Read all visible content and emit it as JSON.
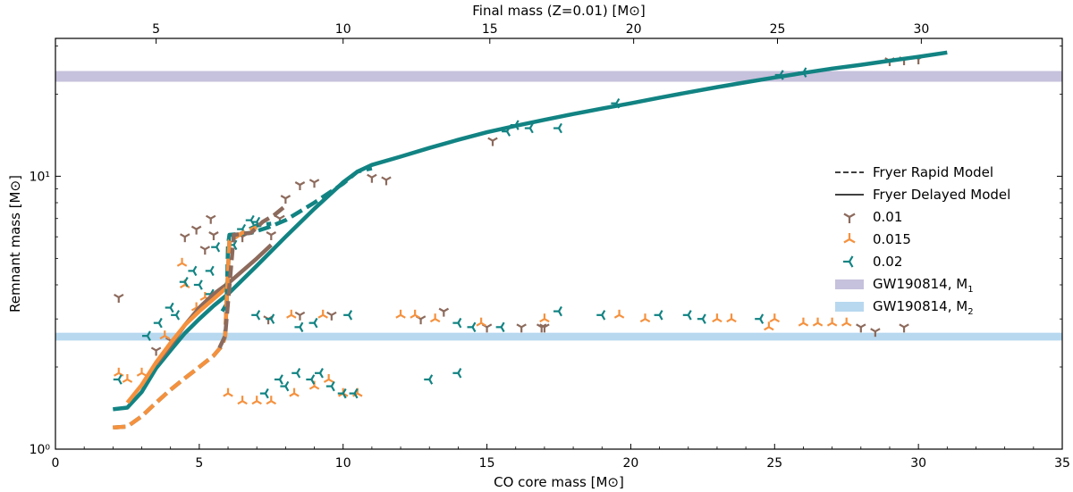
{
  "chart_data": {
    "type": "scatter",
    "xlabel": "CO core mass [M⊙]",
    "ylabel": "Remnant mass [M⊙]",
    "top_xlabel": "Final mass (Z=0.01) [M⊙]",
    "xlim": [
      0,
      35
    ],
    "ylim": [
      1,
      32
    ],
    "yscale": "log",
    "x_ticks": [
      0,
      5,
      10,
      15,
      20,
      25,
      30,
      35
    ],
    "x_tick_labels": [
      "0",
      "5",
      "10",
      "15",
      "20",
      "25",
      "30",
      "35"
    ],
    "y_ticks": [
      1,
      10
    ],
    "y_tick_labels": [
      "10⁰",
      "10¹"
    ],
    "top_x_ticks": [
      {
        "label": "5",
        "at": 3.5
      },
      {
        "label": "10",
        "at": 10.0
      },
      {
        "label": "15",
        "at": 15.1
      },
      {
        "label": "20",
        "at": 20.1
      },
      {
        "label": "25",
        "at": 25.1
      },
      {
        "label": "30",
        "at": 30.1
      }
    ],
    "bands": [
      {
        "name": "GW190814, M₁",
        "label_main": "GW190814, M",
        "label_sub": "1",
        "y": [
          22.2,
          24.3
        ],
        "color": "#c6c1dc"
      },
      {
        "name": "GW190814, M₂",
        "label_main": "GW190814, M",
        "label_sub": "2",
        "y": [
          2.5,
          2.67
        ],
        "color": "#b7d8ef"
      }
    ],
    "legend": {
      "position": "right",
      "entries": [
        {
          "label": "Fryer Rapid Model",
          "style": "dashed"
        },
        {
          "label": "Fryer Delayed Model",
          "style": "solid"
        },
        {
          "label": "0.01",
          "marker": "tri_down",
          "color": "#8c6a5c"
        },
        {
          "label": "0.015",
          "marker": "tri_up",
          "color": "#f5913e"
        },
        {
          "label": "0.02",
          "marker": "tri_left",
          "color": "#128383"
        }
      ]
    },
    "curves": [
      {
        "name": "delayed-z0.02",
        "style": "solid",
        "color": "#128383",
        "points": [
          [
            2.0,
            1.4
          ],
          [
            2.5,
            1.42
          ],
          [
            3.0,
            1.62
          ],
          [
            3.5,
            1.98
          ],
          [
            4.0,
            2.3
          ],
          [
            4.5,
            2.66
          ],
          [
            5.0,
            3.0
          ],
          [
            5.5,
            3.35
          ],
          [
            6.0,
            3.7
          ],
          [
            7.0,
            4.7
          ],
          [
            8.0,
            6.0
          ],
          [
            9.0,
            7.6
          ],
          [
            10.0,
            9.5
          ],
          [
            10.5,
            10.4
          ],
          [
            11.0,
            11.0
          ],
          [
            12.0,
            11.8
          ],
          [
            13.0,
            12.7
          ],
          [
            14.0,
            13.6
          ],
          [
            15.0,
            14.5
          ],
          [
            16.0,
            15.3
          ],
          [
            17.0,
            16.1
          ],
          [
            18.0,
            16.9
          ],
          [
            19.0,
            17.7
          ],
          [
            20.0,
            18.5
          ],
          [
            21.0,
            19.4
          ],
          [
            22.0,
            20.3
          ],
          [
            23.0,
            21.2
          ],
          [
            24.0,
            22.1
          ],
          [
            25.0,
            23.0
          ],
          [
            26.0,
            23.9
          ],
          [
            27.0,
            24.8
          ],
          [
            28.0,
            25.6
          ],
          [
            29.0,
            26.5
          ],
          [
            30.0,
            27.4
          ],
          [
            31.0,
            28.4
          ]
        ]
      },
      {
        "name": "delayed-z0.01",
        "style": "solid",
        "color": "#8c6a5c",
        "points": [
          [
            3.5,
            2.05
          ],
          [
            4.0,
            2.4
          ],
          [
            4.5,
            2.85
          ],
          [
            5.0,
            3.3
          ],
          [
            5.5,
            3.7
          ],
          [
            6.0,
            4.05
          ],
          [
            6.5,
            4.5
          ],
          [
            7.0,
            5.0
          ],
          [
            7.5,
            5.6
          ]
        ]
      },
      {
        "name": "delayed-z0.015",
        "style": "solid",
        "color": "#f5913e",
        "points": [
          [
            2.5,
            1.48
          ],
          [
            3.0,
            1.72
          ],
          [
            3.5,
            2.08
          ],
          [
            4.0,
            2.45
          ],
          [
            4.5,
            2.85
          ],
          [
            5.0,
            3.2
          ],
          [
            5.5,
            3.55
          ],
          [
            6.0,
            3.95
          ]
        ]
      },
      {
        "name": "rapid-z0.02-low",
        "style": "dashed",
        "color": "#128383",
        "points": [
          [
            2.0,
            1.2
          ],
          [
            2.5,
            1.21
          ],
          [
            3.0,
            1.32
          ],
          [
            3.5,
            1.48
          ],
          [
            4.0,
            1.65
          ],
          [
            4.5,
            1.82
          ],
          [
            5.0,
            2.0
          ],
          [
            5.5,
            2.2
          ],
          [
            5.8,
            2.4
          ],
          [
            5.9,
            2.6
          ],
          [
            6.0,
            4.5
          ],
          [
            6.05,
            5.8
          ],
          [
            6.5,
            6.2
          ],
          [
            7.0,
            6.6
          ],
          [
            7.5,
            6.7
          ]
        ]
      },
      {
        "name": "rapid-z0.02-high",
        "style": "dashed",
        "color": "#128383",
        "points": [
          [
            5.8,
            3.2
          ],
          [
            5.95,
            3.4
          ],
          [
            6.0,
            5.6
          ],
          [
            6.05,
            6.1
          ],
          [
            6.8,
            6.2
          ],
          [
            7.4,
            6.5
          ],
          [
            8.0,
            6.9
          ],
          [
            9.0,
            8.0
          ],
          [
            10.0,
            9.4
          ],
          [
            10.5,
            10.4
          ],
          [
            11.0,
            10.7
          ]
        ]
      },
      {
        "name": "rapid-z0.015-low",
        "style": "dashed",
        "color": "#f5913e",
        "points": [
          [
            2.0,
            1.2
          ],
          [
            2.5,
            1.21
          ],
          [
            3.0,
            1.32
          ],
          [
            3.5,
            1.48
          ],
          [
            4.0,
            1.65
          ],
          [
            4.5,
            1.82
          ],
          [
            5.0,
            2.0
          ],
          [
            5.5,
            2.2
          ],
          [
            5.8,
            2.4
          ],
          [
            5.9,
            2.6
          ],
          [
            6.0,
            4.5
          ],
          [
            6.05,
            5.8
          ],
          [
            6.5,
            6.2
          ],
          [
            7.0,
            6.5
          ]
        ]
      },
      {
        "name": "rapid-z0.01",
        "style": "dashed",
        "color": "#8c6a5c",
        "points": [
          [
            5.7,
            2.35
          ],
          [
            5.9,
            2.6
          ],
          [
            6.2,
            6.1
          ],
          [
            6.8,
            6.2
          ],
          [
            7.2,
            6.8
          ],
          [
            7.6,
            7.2
          ],
          [
            8.0,
            7.8
          ]
        ]
      }
    ],
    "series": [
      {
        "name": "0.01",
        "marker": "tri_down",
        "color": "#8c6a5c",
        "points": [
          [
            2.2,
            3.6
          ],
          [
            4.5,
            6.0
          ],
          [
            4.9,
            6.4
          ],
          [
            5.2,
            5.4
          ],
          [
            5.4,
            7.0
          ],
          [
            5.5,
            6.1
          ],
          [
            7.5,
            6.1
          ],
          [
            8.0,
            8.3
          ],
          [
            8.5,
            9.3
          ],
          [
            9.0,
            9.5
          ],
          [
            7.4,
            3.0
          ],
          [
            8.5,
            3.1
          ],
          [
            9.6,
            3.1
          ],
          [
            12.7,
            3.0
          ],
          [
            13.5,
            3.2
          ],
          [
            15.0,
            2.8
          ],
          [
            16.2,
            2.8
          ],
          [
            16.9,
            2.8
          ],
          [
            17.0,
            2.8
          ],
          [
            29.0,
            26.5
          ],
          [
            29.5,
            26.7
          ],
          [
            30.0,
            26.9
          ],
          [
            28.0,
            2.8
          ],
          [
            28.5,
            2.7
          ],
          [
            29.5,
            2.8
          ],
          [
            15.2,
            13.5
          ],
          [
            11.0,
            9.9
          ],
          [
            11.5,
            9.7
          ],
          [
            4.0,
            2.5
          ],
          [
            3.5,
            2.3
          ],
          [
            6.5,
            6.0
          ],
          [
            7.8,
            7.0
          ]
        ]
      },
      {
        "name": "0.015",
        "marker": "tri_up",
        "color": "#f5913e",
        "points": [
          [
            2.2,
            1.9
          ],
          [
            4.4,
            4.8
          ],
          [
            4.5,
            4.0
          ],
          [
            4.9,
            3.3
          ],
          [
            5.2,
            3.6
          ],
          [
            6.0,
            1.6
          ],
          [
            6.5,
            1.5
          ],
          [
            7.0,
            1.5
          ],
          [
            7.5,
            1.5
          ],
          [
            8.3,
            1.6
          ],
          [
            9.0,
            1.7
          ],
          [
            9.5,
            1.8
          ],
          [
            10.0,
            1.6
          ],
          [
            10.5,
            1.6
          ],
          [
            12.0,
            3.1
          ],
          [
            12.5,
            3.1
          ],
          [
            13.2,
            3.0
          ],
          [
            14.8,
            2.9
          ],
          [
            17.0,
            3.0
          ],
          [
            19.6,
            3.1
          ],
          [
            20.5,
            3.0
          ],
          [
            23.0,
            3.0
          ],
          [
            23.5,
            3.0
          ],
          [
            25.0,
            3.0
          ],
          [
            26.0,
            2.9
          ],
          [
            26.5,
            2.9
          ],
          [
            27.0,
            2.9
          ],
          [
            27.5,
            2.9
          ],
          [
            24.8,
            2.8
          ],
          [
            8.2,
            3.1
          ],
          [
            9.3,
            3.1
          ],
          [
            2.5,
            1.8
          ],
          [
            3.0,
            1.9
          ],
          [
            3.8,
            2.6
          ]
        ]
      },
      {
        "name": "0.02",
        "marker": "tri_left",
        "color": "#128383",
        "points": [
          [
            2.2,
            1.8
          ],
          [
            3.2,
            2.6
          ],
          [
            3.6,
            2.9
          ],
          [
            4.0,
            3.3
          ],
          [
            4.2,
            3.1
          ],
          [
            4.5,
            4.1
          ],
          [
            4.8,
            4.5
          ],
          [
            5.0,
            4.0
          ],
          [
            5.4,
            4.5
          ],
          [
            5.6,
            5.5
          ],
          [
            5.4,
            3.7
          ],
          [
            6.2,
            5.6
          ],
          [
            7.0,
            6.8
          ],
          [
            7.3,
            1.6
          ],
          [
            7.8,
            1.8
          ],
          [
            8.0,
            1.7
          ],
          [
            8.4,
            1.9
          ],
          [
            8.9,
            1.8
          ],
          [
            9.2,
            1.9
          ],
          [
            9.6,
            1.7
          ],
          [
            10.0,
            1.6
          ],
          [
            10.4,
            1.6
          ],
          [
            7.0,
            3.1
          ],
          [
            7.5,
            3.0
          ],
          [
            8.5,
            2.8
          ],
          [
            9.0,
            2.9
          ],
          [
            10.2,
            3.1
          ],
          [
            14.0,
            2.9
          ],
          [
            14.5,
            2.8
          ],
          [
            15.5,
            2.8
          ],
          [
            17.5,
            3.2
          ],
          [
            19.0,
            3.1
          ],
          [
            21.0,
            3.1
          ],
          [
            22.0,
            3.1
          ],
          [
            22.5,
            3.0
          ],
          [
            24.5,
            3.0
          ],
          [
            16.5,
            15.0
          ],
          [
            17.5,
            15.0
          ],
          [
            15.7,
            14.6
          ],
          [
            16.0,
            15.4
          ],
          [
            19.5,
            18.5
          ],
          [
            25.2,
            23.5
          ],
          [
            26.0,
            24.0
          ],
          [
            6.8,
            6.9
          ],
          [
            6.5,
            6.4
          ],
          [
            13.0,
            1.8
          ],
          [
            14.0,
            1.9
          ]
        ]
      }
    ]
  }
}
